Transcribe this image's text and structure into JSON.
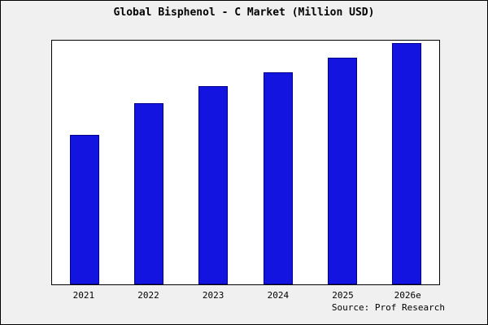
{
  "chart_data": {
    "type": "bar",
    "title": "Global Bisphenol - C Market (Million USD)",
    "categories": [
      "2021",
      "2022",
      "2023",
      "2024",
      "2025",
      "2026e"
    ],
    "values": [
      62,
      75,
      82,
      88,
      94,
      100
    ],
    "xlabel": "",
    "ylabel": "",
    "ylim": [
      0,
      101
    ],
    "grid": false,
    "legend": false,
    "bar_color": "#1414e0",
    "bar_edge_color": "#00008b",
    "plot_background": "#ffffff",
    "page_background": "#f0f0f0"
  },
  "source": {
    "label": "Source: Prof Research"
  }
}
